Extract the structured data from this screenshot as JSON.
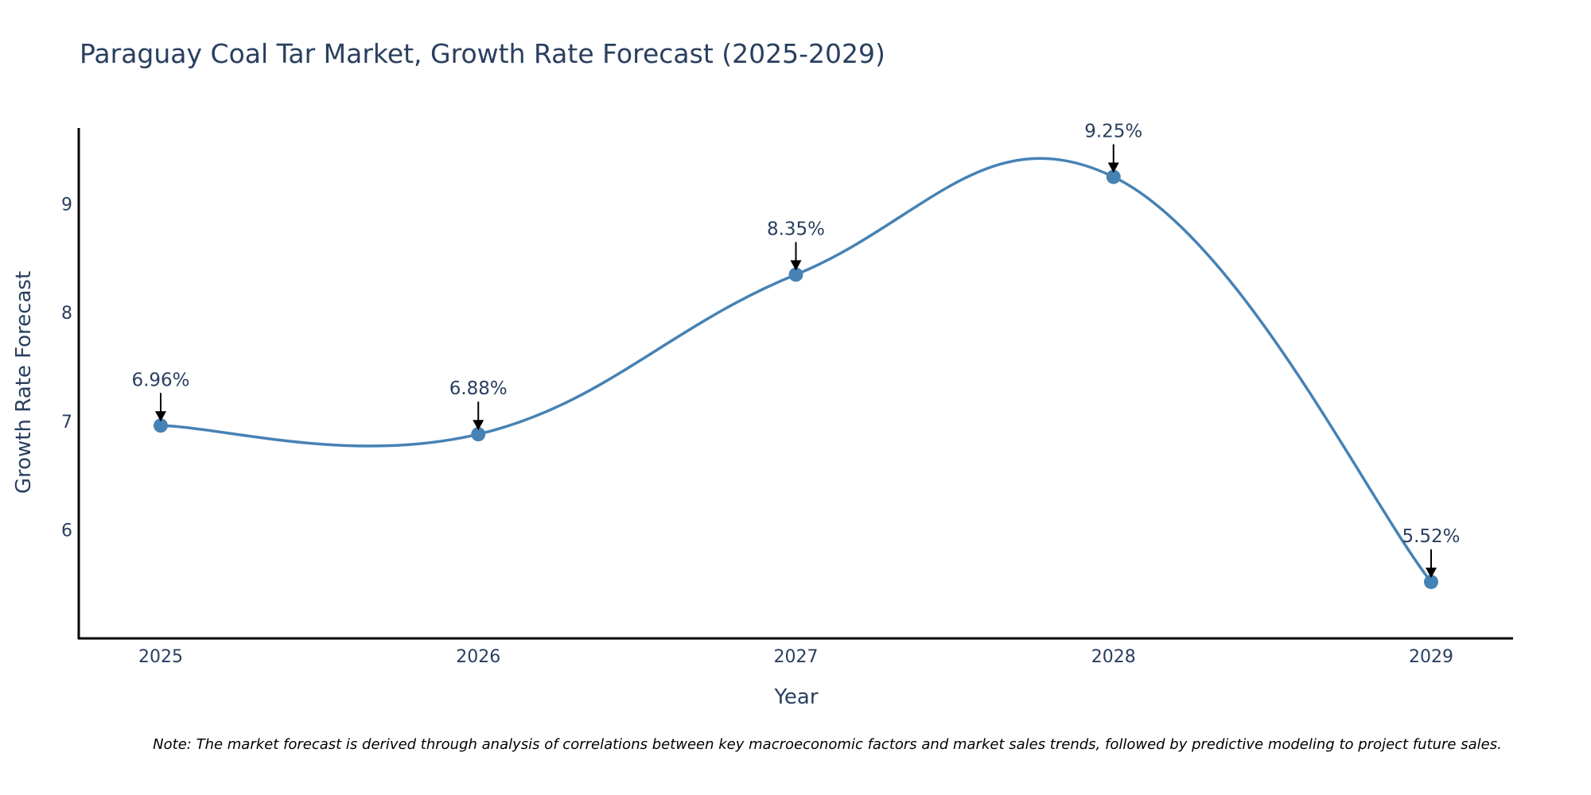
{
  "chart_data": {
    "type": "line",
    "title": "Paraguay Coal Tar Market, Growth Rate Forecast (2025-2029)",
    "xlabel": "Year",
    "ylabel": "Growth Rate Forecast",
    "x": [
      "2025",
      "2026",
      "2027",
      "2028",
      "2029"
    ],
    "values": [
      6.96,
      6.88,
      8.35,
      9.25,
      5.52
    ],
    "annotations": [
      "6.96%",
      "6.88%",
      "8.35%",
      "9.25%",
      "5.52%"
    ],
    "yticks": [
      6,
      7,
      8,
      9
    ],
    "ylim": [
      5.0,
      9.7
    ],
    "grid": false,
    "line_shape": "spline",
    "note": "Note: The market forecast is derived through analysis of correlations between key macroeconomic factors and market sales trends, followed by predictive modeling to project future sales.",
    "colors": {
      "line": "#4682b4",
      "marker": "#4682b4",
      "text": "#2a3f5f",
      "axis": "#000000",
      "arrow": "#000000"
    }
  }
}
